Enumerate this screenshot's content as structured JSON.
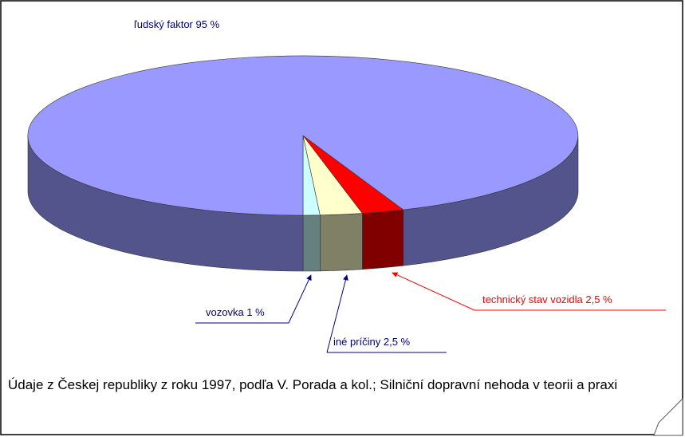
{
  "chart_data": {
    "type": "pie",
    "categories": [
      "ľudský faktor",
      "vozovka",
      "iné príčiny",
      "technický stav vozidla"
    ],
    "values": [
      95,
      1,
      2.5,
      2.5
    ],
    "value_labels": [
      "95 %",
      "1 %",
      "2,5 %",
      "2,5 %"
    ],
    "colors": [
      "#9999ff",
      "#ccffff",
      "#ffffcc",
      "#ff0000"
    ],
    "caption": "Údaje z Českej republiky z roku 1997, podľa V. Porada a kol.; Silniční dopravní nehoda v teorii a praxi"
  }
}
